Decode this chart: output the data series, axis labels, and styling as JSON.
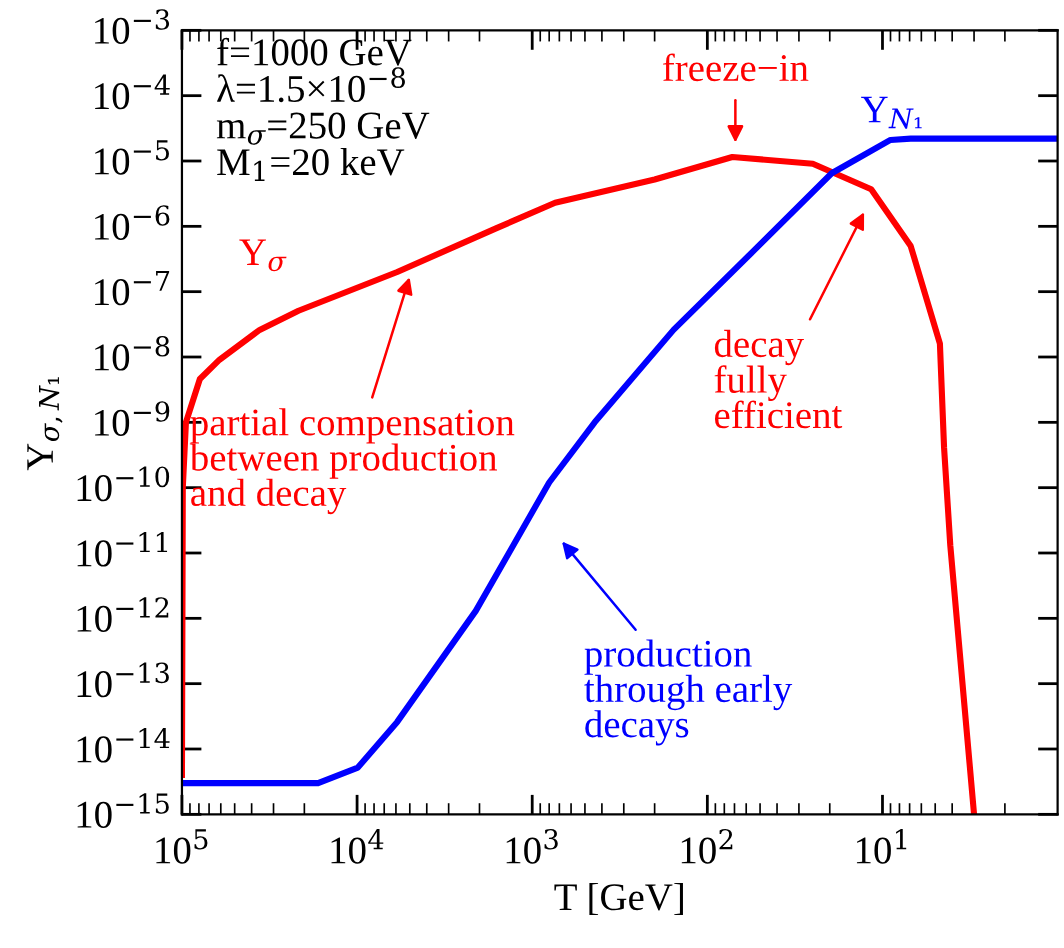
{
  "chart_data": {
    "type": "line",
    "xlabel": "T [GeV]",
    "ylabel": "Y$_{σ,N₁}$",
    "log": "xy",
    "xlim": [
      100000,
      1
    ],
    "ylim": [
      1e-15,
      0.001
    ],
    "xticks": [
      {
        "value": 100000,
        "label": "10$^{5}$"
      },
      {
        "value": 10000,
        "label": "10$^{4}$"
      },
      {
        "value": 1000,
        "label": "10$^{3}$"
      },
      {
        "value": 100,
        "label": "10$^{2}$"
      },
      {
        "value": 10,
        "label": "10$^{1}$"
      }
    ],
    "yticks": [
      {
        "value": 1e-15,
        "label": "10$^{−15}$"
      },
      {
        "value": 1e-14,
        "label": "10$^{−14}$"
      },
      {
        "value": 1e-13,
        "label": "10$^{−13}$"
      },
      {
        "value": 1e-12,
        "label": "10$^{−12}$"
      },
      {
        "value": 1e-11,
        "label": "10$^{−11}$"
      },
      {
        "value": 1e-10,
        "label": "10$^{−10}$"
      },
      {
        "value": 1e-09,
        "label": "10$^{−9}$"
      },
      {
        "value": 1e-08,
        "label": "10$^{−8}$"
      },
      {
        "value": 1e-07,
        "label": "10$^{−7}$"
      },
      {
        "value": 1e-06,
        "label": "10$^{−6}$"
      },
      {
        "value": 1e-05,
        "label": "10$^{−5}$"
      },
      {
        "value": 0.0001,
        "label": "10$^{−4}$"
      },
      {
        "value": 0.001,
        "label": "10$^{−3}$"
      }
    ],
    "grid": false,
    "legend": false,
    "marker": "none",
    "line_style": "solid",
    "series": [
      {
        "name": "Y$_{σ}$",
        "color": "#ff0000",
        "x": [
          100000,
          98900,
          94900,
          79000,
          61000,
          36000,
          21600,
          5900,
          1610,
          740,
          200,
          72,
          25,
          11.6,
          6.9,
          4.7,
          4.45,
          4.1,
          3.0
        ],
        "values": [
          4e-15,
          1e-10,
          1e-09,
          4.6e-09,
          9.1e-09,
          2.6e-08,
          5.1e-08,
          2e-07,
          9.3e-07,
          2.3e-06,
          5.2e-06,
          1.15e-05,
          9.1e-06,
          3.7e-06,
          5e-07,
          1.6e-08,
          4.1e-10,
          1.3e-11,
          1e-15
        ]
      },
      {
        "name": "Y$_{N₁}$",
        "color": "#0000ff",
        "x": [
          100000,
          16700,
          9900,
          5900,
          2100,
          960,
          800,
          440,
          156,
          55,
          19.5,
          9,
          6.9,
          1
        ],
        "values": [
          3e-15,
          3e-15,
          5.2e-15,
          2.6e-14,
          1.3e-12,
          5.1e-11,
          1.2e-10,
          1e-09,
          2.6e-08,
          4.1e-07,
          6.5e-06,
          2.1e-05,
          2.2e-05,
          2.2e-05
        ]
      }
    ],
    "annotations": [
      "f=1000 GeV\nλ=1.5×10$^{−8}$\nm$_{σ}$=250 GeV\nM$_{1}$=20 keV",
      "freeze−in",
      "partial compensation\nbetween production\nand decay",
      "decay\nfully\nefficient",
      "production\nthrough early\ndecays"
    ]
  }
}
